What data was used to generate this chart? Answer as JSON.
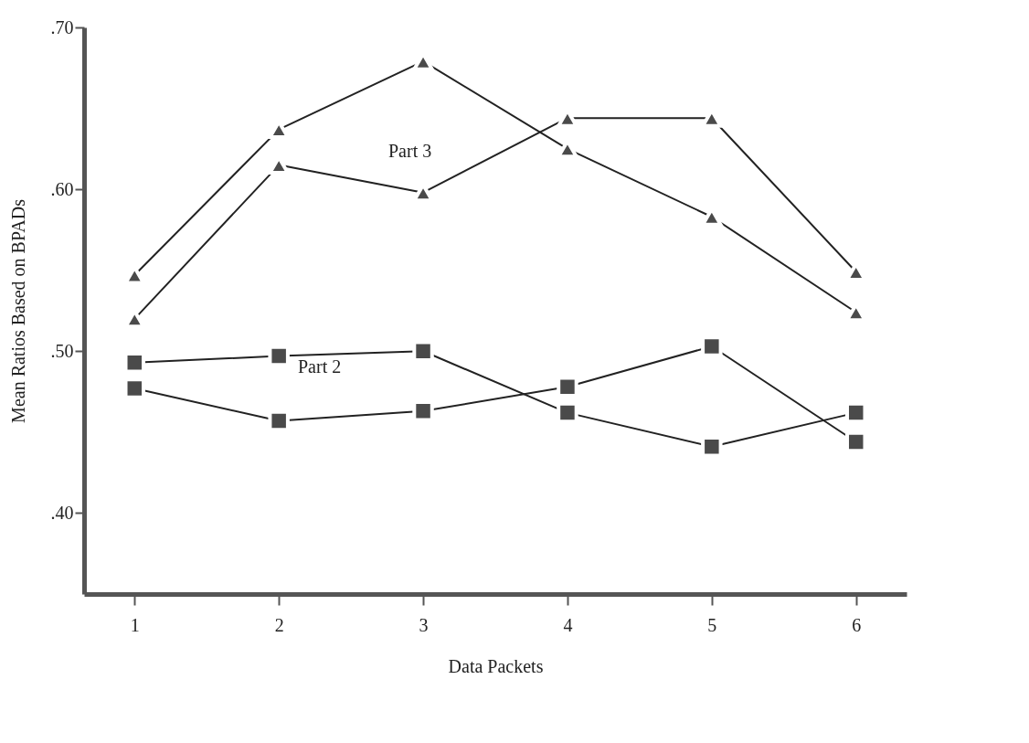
{
  "chart_data": {
    "type": "line",
    "xlabel": "Data Packets",
    "ylabel": "Mean Ratios Based on BPADs",
    "categories": [
      "1",
      "2",
      "3",
      "4",
      "5",
      "6"
    ],
    "series": [
      {
        "color": "#4a4a4a",
        "marker": "triangle",
        "values": [
          0.547,
          0.637,
          0.679,
          0.625,
          0.583,
          0.524
        ]
      },
      {
        "color": "#4a4a4a",
        "marker": "triangle",
        "values": [
          0.52,
          0.615,
          0.598,
          0.644,
          0.644,
          0.549
        ]
      },
      {
        "color": "#4a4a4a",
        "marker": "square",
        "values": [
          0.493,
          0.497,
          0.5,
          0.462,
          0.441,
          0.462
        ]
      },
      {
        "color": "#4a4a4a",
        "marker": "square",
        "values": [
          0.477,
          0.457,
          0.463,
          0.478,
          0.503,
          0.444
        ]
      }
    ],
    "annotations": [
      "Part 3",
      "Part 2"
    ],
    "ylim": [
      0.35,
      0.7
    ],
    "yticks": [
      {
        "value": 0.4,
        "label": ".40"
      },
      {
        "value": 0.5,
        "label": ".50"
      },
      {
        "value": 0.6,
        "label": ".60"
      },
      {
        "value": 0.7,
        "label": ".70"
      }
    ],
    "grid": false
  }
}
